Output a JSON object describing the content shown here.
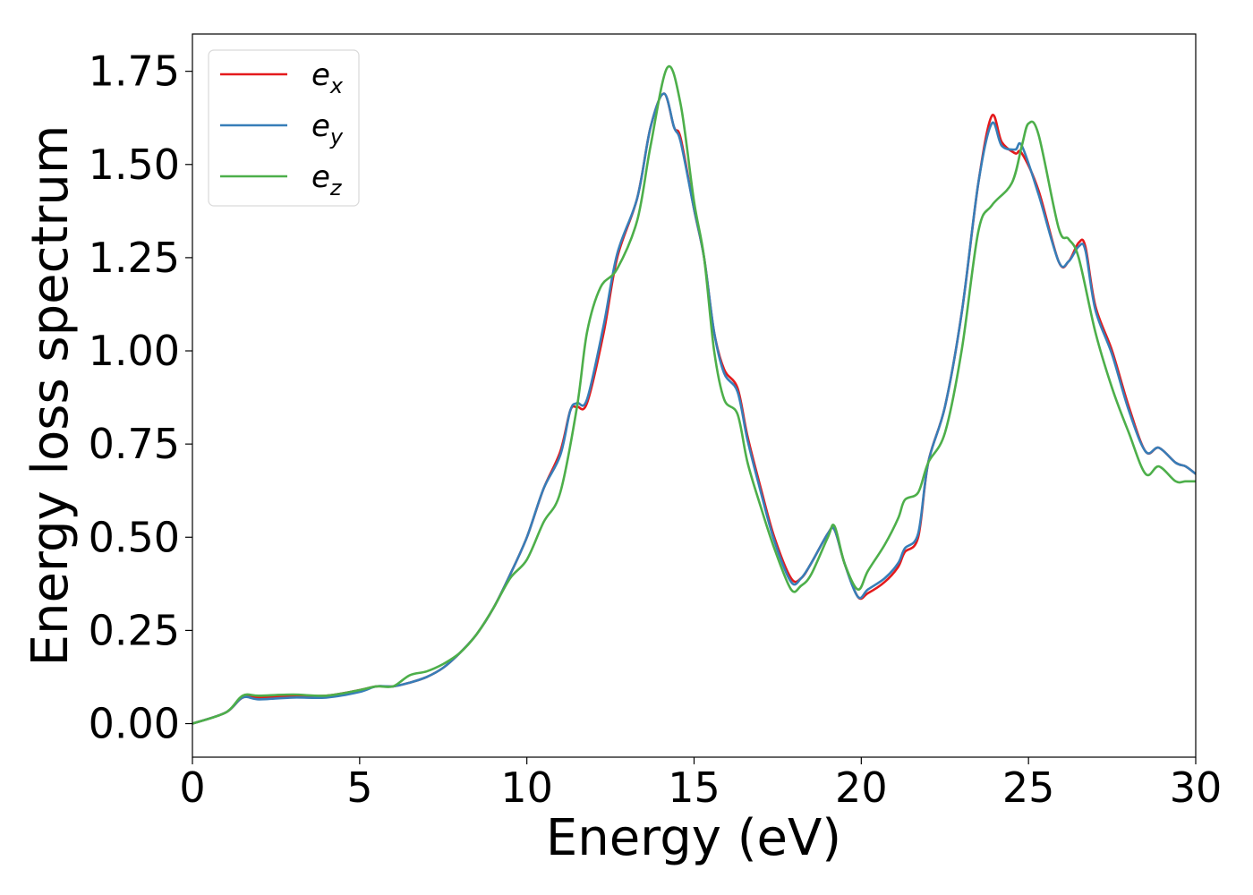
{
  "chart_data": {
    "type": "line",
    "xlabel": "Energy (eV)",
    "ylabel": "Energy loss spectrum",
    "xlim": [
      0,
      30
    ],
    "ylim": [
      -0.09,
      1.85
    ],
    "xticks": [
      0,
      5,
      10,
      15,
      20,
      25,
      30
    ],
    "xtick_labels": [
      "0",
      "5",
      "10",
      "15",
      "20",
      "25",
      "30"
    ],
    "yticks": [
      0,
      0.25,
      0.5,
      0.75,
      1.0,
      1.25,
      1.5,
      1.75
    ],
    "ytick_labels": [
      "0.00",
      "0.25",
      "0.50",
      "0.75",
      "1.00",
      "1.25",
      "1.50",
      "1.75"
    ],
    "grid": false,
    "legend_position": "top-left",
    "series": [
      {
        "name": "e",
        "subscript": "x",
        "color": "#e41a1c",
        "points": [
          [
            0,
            0
          ],
          [
            1,
            0.03
          ],
          [
            1.5,
            0.07
          ],
          [
            2,
            0.07
          ],
          [
            3,
            0.075
          ],
          [
            4,
            0.075
          ],
          [
            5,
            0.09
          ],
          [
            5.5,
            0.1
          ],
          [
            6,
            0.1
          ],
          [
            6.5,
            0.11
          ],
          [
            7,
            0.125
          ],
          [
            7.5,
            0.15
          ],
          [
            8,
            0.19
          ],
          [
            8.5,
            0.24
          ],
          [
            9,
            0.31
          ],
          [
            9.5,
            0.4
          ],
          [
            10,
            0.5
          ],
          [
            10.5,
            0.63
          ],
          [
            11,
            0.73
          ],
          [
            11.3,
            0.84
          ],
          [
            11.5,
            0.85
          ],
          [
            11.8,
            0.86
          ],
          [
            12.3,
            1.05
          ],
          [
            12.7,
            1.25
          ],
          [
            13.3,
            1.41
          ],
          [
            13.7,
            1.6
          ],
          [
            14.1,
            1.69
          ],
          [
            14.4,
            1.6
          ],
          [
            14.6,
            1.57
          ],
          [
            15,
            1.38
          ],
          [
            15.3,
            1.25
          ],
          [
            15.6,
            1.05
          ],
          [
            15.9,
            0.95
          ],
          [
            16.3,
            0.9
          ],
          [
            16.6,
            0.77
          ],
          [
            17,
            0.63
          ],
          [
            17.4,
            0.5
          ],
          [
            17.9,
            0.39
          ],
          [
            18.2,
            0.39
          ],
          [
            18.5,
            0.43
          ],
          [
            19,
            0.51
          ],
          [
            19.2,
            0.52
          ],
          [
            19.5,
            0.43
          ],
          [
            19.9,
            0.34
          ],
          [
            20.2,
            0.35
          ],
          [
            20.7,
            0.38
          ],
          [
            21.1,
            0.42
          ],
          [
            21.3,
            0.46
          ],
          [
            21.7,
            0.5
          ],
          [
            22,
            0.7
          ],
          [
            22.5,
            0.85
          ],
          [
            23,
            1.1
          ],
          [
            23.5,
            1.45
          ],
          [
            23.9,
            1.63
          ],
          [
            24.2,
            1.56
          ],
          [
            24.6,
            1.53
          ],
          [
            24.8,
            1.53
          ],
          [
            25.3,
            1.43
          ],
          [
            25.9,
            1.24
          ],
          [
            26.2,
            1.24
          ],
          [
            26.5,
            1.29
          ],
          [
            26.7,
            1.28
          ],
          [
            27,
            1.12
          ],
          [
            27.5,
            1.0
          ],
          [
            28,
            0.85
          ],
          [
            28.5,
            0.73
          ],
          [
            28.9,
            0.74
          ],
          [
            29.4,
            0.7
          ],
          [
            29.7,
            0.69
          ],
          [
            30,
            0.67
          ]
        ]
      },
      {
        "name": "e",
        "subscript": "y",
        "color": "#377eb8",
        "points": [
          [
            0,
            0
          ],
          [
            1,
            0.03
          ],
          [
            1.5,
            0.07
          ],
          [
            2,
            0.065
          ],
          [
            3,
            0.07
          ],
          [
            4,
            0.07
          ],
          [
            5,
            0.085
          ],
          [
            5.5,
            0.1
          ],
          [
            6,
            0.1
          ],
          [
            6.5,
            0.11
          ],
          [
            7,
            0.125
          ],
          [
            7.5,
            0.15
          ],
          [
            8,
            0.19
          ],
          [
            8.5,
            0.24
          ],
          [
            9,
            0.31
          ],
          [
            9.5,
            0.4
          ],
          [
            10,
            0.5
          ],
          [
            10.5,
            0.63
          ],
          [
            11,
            0.72
          ],
          [
            11.3,
            0.84
          ],
          [
            11.5,
            0.86
          ],
          [
            11.8,
            0.87
          ],
          [
            12.3,
            1.07
          ],
          [
            12.7,
            1.26
          ],
          [
            13.3,
            1.41
          ],
          [
            13.7,
            1.6
          ],
          [
            14.1,
            1.69
          ],
          [
            14.4,
            1.6
          ],
          [
            14.6,
            1.56
          ],
          [
            15,
            1.38
          ],
          [
            15.3,
            1.25
          ],
          [
            15.6,
            1.05
          ],
          [
            15.9,
            0.94
          ],
          [
            16.3,
            0.89
          ],
          [
            16.6,
            0.76
          ],
          [
            17,
            0.62
          ],
          [
            17.4,
            0.49
          ],
          [
            17.9,
            0.38
          ],
          [
            18.2,
            0.39
          ],
          [
            18.5,
            0.43
          ],
          [
            19,
            0.51
          ],
          [
            19.2,
            0.52
          ],
          [
            19.5,
            0.43
          ],
          [
            19.9,
            0.34
          ],
          [
            20.2,
            0.36
          ],
          [
            20.7,
            0.39
          ],
          [
            21.1,
            0.43
          ],
          [
            21.3,
            0.47
          ],
          [
            21.7,
            0.51
          ],
          [
            22,
            0.7
          ],
          [
            22.5,
            0.85
          ],
          [
            23,
            1.1
          ],
          [
            23.5,
            1.45
          ],
          [
            23.9,
            1.61
          ],
          [
            24.2,
            1.55
          ],
          [
            24.6,
            1.54
          ],
          [
            24.8,
            1.55
          ],
          [
            25.3,
            1.42
          ],
          [
            25.9,
            1.24
          ],
          [
            26.2,
            1.24
          ],
          [
            26.5,
            1.28
          ],
          [
            26.7,
            1.27
          ],
          [
            27,
            1.11
          ],
          [
            27.5,
            0.99
          ],
          [
            28,
            0.84
          ],
          [
            28.5,
            0.73
          ],
          [
            28.9,
            0.74
          ],
          [
            29.4,
            0.7
          ],
          [
            29.7,
            0.69
          ],
          [
            30,
            0.67
          ]
        ]
      },
      {
        "name": "e",
        "subscript": "z",
        "color": "#4daf4a",
        "points": [
          [
            0,
            0
          ],
          [
            1,
            0.03
          ],
          [
            1.5,
            0.075
          ],
          [
            2,
            0.075
          ],
          [
            3,
            0.078
          ],
          [
            4,
            0.075
          ],
          [
            5,
            0.09
          ],
          [
            5.5,
            0.1
          ],
          [
            6,
            0.1
          ],
          [
            6.5,
            0.13
          ],
          [
            7,
            0.14
          ],
          [
            7.5,
            0.16
          ],
          [
            8,
            0.19
          ],
          [
            8.5,
            0.24
          ],
          [
            9,
            0.31
          ],
          [
            9.5,
            0.39
          ],
          [
            10,
            0.44
          ],
          [
            10.5,
            0.54
          ],
          [
            11,
            0.62
          ],
          [
            11.5,
            0.85
          ],
          [
            11.8,
            1.05
          ],
          [
            12.2,
            1.17
          ],
          [
            12.7,
            1.22
          ],
          [
            13.3,
            1.35
          ],
          [
            13.7,
            1.55
          ],
          [
            14.2,
            1.76
          ],
          [
            14.6,
            1.66
          ],
          [
            15,
            1.4
          ],
          [
            15.3,
            1.25
          ],
          [
            15.6,
            1.0
          ],
          [
            15.9,
            0.87
          ],
          [
            16.3,
            0.83
          ],
          [
            16.6,
            0.7
          ],
          [
            17,
            0.58
          ],
          [
            17.4,
            0.47
          ],
          [
            17.9,
            0.36
          ],
          [
            18.2,
            0.37
          ],
          [
            18.5,
            0.4
          ],
          [
            19,
            0.5
          ],
          [
            19.2,
            0.53
          ],
          [
            19.5,
            0.43
          ],
          [
            19.9,
            0.36
          ],
          [
            20.2,
            0.41
          ],
          [
            20.7,
            0.48
          ],
          [
            21.1,
            0.55
          ],
          [
            21.3,
            0.6
          ],
          [
            21.7,
            0.62
          ],
          [
            22,
            0.7
          ],
          [
            22.5,
            0.78
          ],
          [
            23,
            1.0
          ],
          [
            23.5,
            1.32
          ],
          [
            23.9,
            1.39
          ],
          [
            24.5,
            1.45
          ],
          [
            24.8,
            1.55
          ],
          [
            25,
            1.61
          ],
          [
            25.3,
            1.58
          ],
          [
            25.9,
            1.33
          ],
          [
            26.2,
            1.3
          ],
          [
            26.5,
            1.25
          ],
          [
            27,
            1.05
          ],
          [
            27.5,
            0.9
          ],
          [
            28,
            0.78
          ],
          [
            28.5,
            0.67
          ],
          [
            28.9,
            0.69
          ],
          [
            29.4,
            0.65
          ],
          [
            29.7,
            0.65
          ],
          [
            30,
            0.65
          ]
        ]
      }
    ]
  }
}
